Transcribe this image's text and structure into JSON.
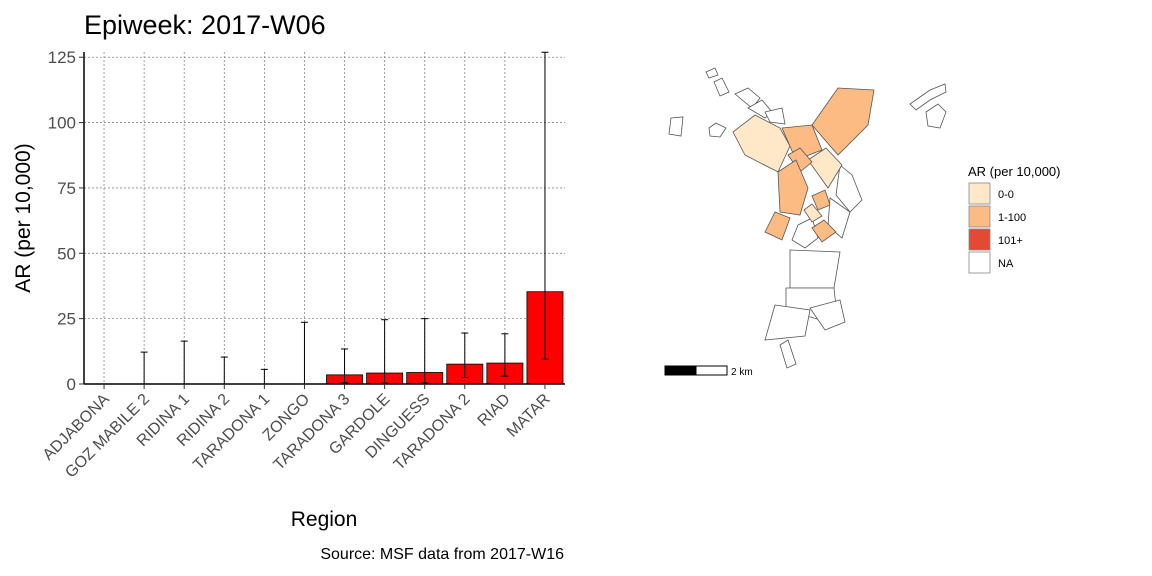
{
  "chart_data": [
    {
      "type": "bar",
      "title": "Epiweek: 2017-W06",
      "xlabel": "Region",
      "ylabel": "AR (per 10,000)",
      "caption": "Source: MSF data from 2017-W16",
      "ylim": [
        0,
        127
      ],
      "yticks": [
        0,
        25,
        50,
        75,
        100,
        125
      ],
      "grid": true,
      "bar_color": "#ff0000",
      "categories": [
        "ADJABONA",
        "GOZ MABILE 2",
        "RIDINA 1",
        "RIDINA 2",
        "TARADONA 1",
        "ZONGO",
        "TARADONA 3",
        "GARDOLE",
        "DINGUESS",
        "TARADONA 2",
        "RIAD",
        "MATAR"
      ],
      "values": [
        0,
        0,
        0,
        0,
        0,
        0,
        3.5,
        4.2,
        4.4,
        7.6,
        8.0,
        35.3
      ],
      "error_low": [
        0,
        0,
        0,
        0,
        0,
        0,
        0.5,
        0.4,
        0.4,
        2.5,
        3.0,
        9.5
      ],
      "error_high": [
        0,
        12.2,
        16.4,
        10.3,
        5.6,
        23.6,
        13.4,
        24.6,
        25.0,
        19.5,
        19.2,
        126.9
      ]
    },
    {
      "type": "map",
      "legend": {
        "title": "AR (per 10,000)",
        "placement": "right",
        "items": [
          {
            "label": "0-0",
            "color": "#fee8c8"
          },
          {
            "label": "1-100",
            "color": "#fdbb84"
          },
          {
            "label": "101+",
            "color": "#e34a33"
          },
          {
            "label": "NA",
            "color": "#ffffff"
          }
        ]
      },
      "scale_bar_label": "2 km"
    }
  ]
}
